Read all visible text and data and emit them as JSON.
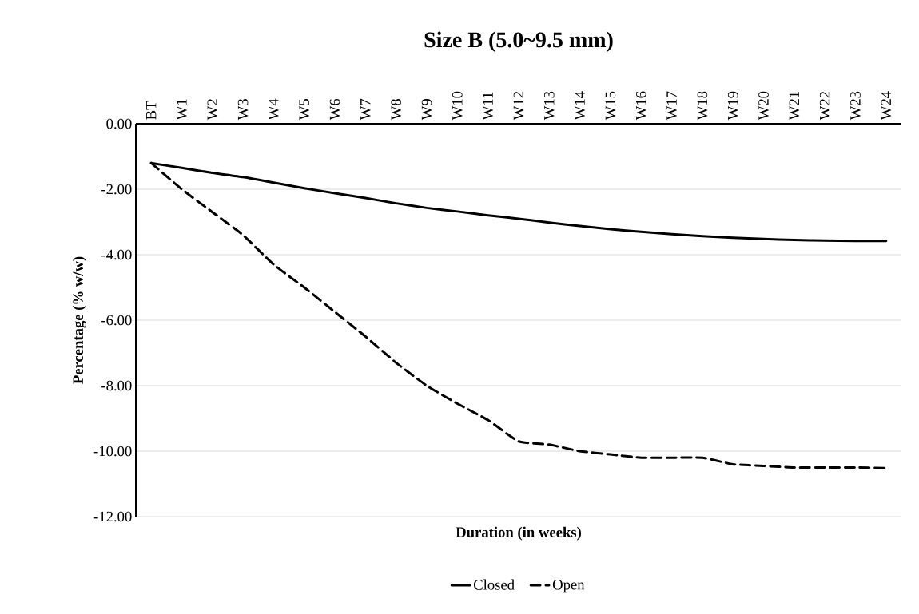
{
  "chart_data": {
    "type": "line",
    "title": "Size B (5.0~9.5 mm)",
    "xlabel": "Duration (in weeks)",
    "ylabel": "Percentage (% w/w)",
    "categories": [
      "BT",
      "W1",
      "W2",
      "W3",
      "W4",
      "W5",
      "W6",
      "W7",
      "W8",
      "W9",
      "W10",
      "W11",
      "W12",
      "W13",
      "W14",
      "W15",
      "W16",
      "W17",
      "W18",
      "W19",
      "W20",
      "W21",
      "W22",
      "W23",
      "W24"
    ],
    "series": [
      {
        "name": "Closed",
        "color": "#000000",
        "line_style": "solid",
        "values": [
          -1.2,
          -1.35,
          -1.5,
          -1.63,
          -1.8,
          -1.97,
          -2.12,
          -2.27,
          -2.43,
          -2.57,
          -2.68,
          -2.8,
          -2.9,
          -3.02,
          -3.12,
          -3.22,
          -3.3,
          -3.37,
          -3.43,
          -3.48,
          -3.52,
          -3.55,
          -3.57,
          -3.58,
          -3.58
        ]
      },
      {
        "name": "Open",
        "color": "#000000",
        "line_style": "dashed",
        "values": [
          -1.2,
          -2.0,
          -2.7,
          -3.4,
          -4.3,
          -5.0,
          -5.75,
          -6.5,
          -7.3,
          -8.0,
          -8.55,
          -9.05,
          -9.7,
          -9.8,
          -10.0,
          -10.1,
          -10.2,
          -10.2,
          -10.2,
          -10.4,
          -10.45,
          -10.5,
          -10.5,
          -10.5,
          -10.52
        ]
      }
    ],
    "ylim": [
      -12,
      0
    ],
    "yticks": [
      {
        "value": 0,
        "label": "0.00"
      },
      {
        "value": -2,
        "label": "-2.00"
      },
      {
        "value": -4,
        "label": "-4.00"
      },
      {
        "value": -6,
        "label": "-6.00"
      },
      {
        "value": -8,
        "label": "-8.00"
      },
      {
        "value": -10,
        "label": "-10.00"
      },
      {
        "value": -12,
        "label": "-12.00"
      }
    ],
    "grid": "y",
    "legend": "bottom",
    "marker": "none"
  }
}
